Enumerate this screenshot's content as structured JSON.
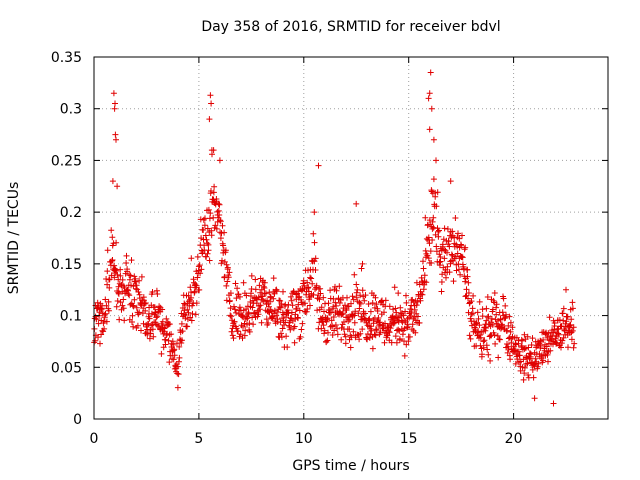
{
  "chart_data": {
    "type": "scatter",
    "title": "Day 358 of 2016, SRMTID for receiver bdvl",
    "xlabel": "GPS time / hours",
    "ylabel": "SRMTID / TECUs",
    "xlim": [
      0,
      24.5
    ],
    "ylim": [
      0,
      0.35
    ],
    "x_ticks": [
      "0",
      "5",
      "10",
      "15",
      "20"
    ],
    "x_tick_values": [
      0,
      5,
      10,
      15,
      20
    ],
    "y_ticks": [
      "0",
      "0.05",
      "0.1",
      "0.15",
      "0.2",
      "0.25",
      "0.3",
      "0.35"
    ],
    "y_tick_values": [
      0,
      0.05,
      0.1,
      0.15,
      0.2,
      0.25,
      0.3,
      0.35
    ],
    "grid": true,
    "marker": "+",
    "marker_color": "#e00000",
    "series": [
      {
        "name": "SRMTID",
        "envelope_hours": [
          0,
          0.5,
          0.8,
          1.2,
          1.6,
          2.0,
          2.5,
          3.0,
          3.5,
          4.0,
          4.3,
          4.8,
          5.2,
          5.6,
          6.0,
          6.5,
          7.0,
          7.5,
          8.0,
          8.5,
          9.0,
          9.5,
          10.0,
          10.5,
          10.8,
          11.2,
          11.8,
          12.5,
          13.0,
          13.5,
          14.0,
          14.5,
          15.0,
          15.5,
          15.9,
          16.2,
          16.5,
          17.0,
          17.5,
          18.0,
          18.5,
          19.0,
          19.5,
          20.0,
          20.5,
          21.0,
          21.5,
          22.0,
          22.5,
          22.9
        ],
        "envelope_center": [
          0.09,
          0.1,
          0.16,
          0.12,
          0.13,
          0.12,
          0.1,
          0.1,
          0.08,
          0.05,
          0.11,
          0.12,
          0.17,
          0.2,
          0.19,
          0.11,
          0.1,
          0.11,
          0.12,
          0.11,
          0.1,
          0.1,
          0.12,
          0.14,
          0.1,
          0.1,
          0.1,
          0.11,
          0.1,
          0.1,
          0.09,
          0.1,
          0.09,
          0.11,
          0.16,
          0.2,
          0.15,
          0.16,
          0.17,
          0.09,
          0.08,
          0.09,
          0.1,
          0.07,
          0.06,
          0.06,
          0.07,
          0.08,
          0.09,
          0.09
        ],
        "envelope_spread": [
          0.03,
          0.04,
          0.08,
          0.04,
          0.04,
          0.04,
          0.04,
          0.04,
          0.04,
          0.03,
          0.04,
          0.04,
          0.05,
          0.06,
          0.04,
          0.04,
          0.04,
          0.04,
          0.04,
          0.04,
          0.04,
          0.04,
          0.05,
          0.05,
          0.04,
          0.04,
          0.04,
          0.05,
          0.04,
          0.04,
          0.04,
          0.04,
          0.04,
          0.04,
          0.06,
          0.07,
          0.05,
          0.04,
          0.04,
          0.04,
          0.04,
          0.04,
          0.04,
          0.03,
          0.03,
          0.03,
          0.03,
          0.03,
          0.03,
          0.03
        ],
        "peak_points": [
          [
            0.95,
            0.315
          ],
          [
            0.98,
            0.3
          ],
          [
            1.0,
            0.305
          ],
          [
            1.02,
            0.275
          ],
          [
            1.05,
            0.27
          ],
          [
            0.9,
            0.23
          ],
          [
            1.1,
            0.225
          ],
          [
            5.55,
            0.313
          ],
          [
            5.58,
            0.305
          ],
          [
            5.5,
            0.29
          ],
          [
            5.62,
            0.26
          ],
          [
            5.7,
            0.26
          ],
          [
            6.0,
            0.25
          ],
          [
            10.7,
            0.245
          ],
          [
            10.5,
            0.2
          ],
          [
            12.5,
            0.208
          ],
          [
            12.8,
            0.15
          ],
          [
            16.05,
            0.335
          ],
          [
            16.0,
            0.315
          ],
          [
            15.95,
            0.31
          ],
          [
            16.1,
            0.3
          ],
          [
            16.0,
            0.28
          ],
          [
            16.2,
            0.27
          ],
          [
            16.3,
            0.25
          ],
          [
            16.1,
            0.22
          ],
          [
            17.0,
            0.23
          ],
          [
            22.5,
            0.125
          ],
          [
            21.9,
            0.015
          ],
          [
            21.0,
            0.02
          ]
        ],
        "count": 1400
      }
    ]
  }
}
